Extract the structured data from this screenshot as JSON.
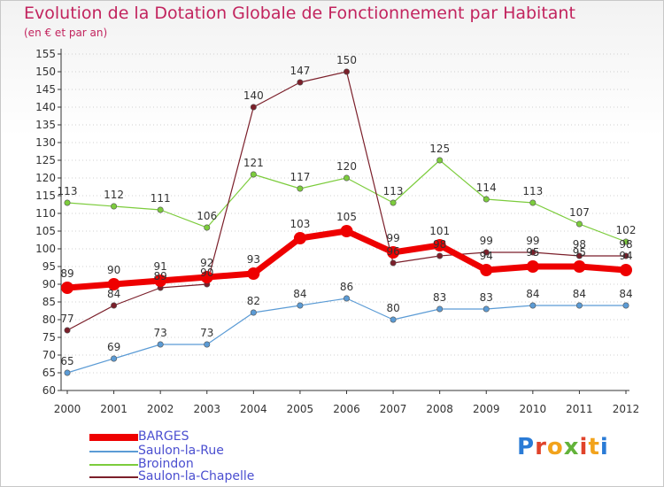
{
  "header": {
    "title": "Evolution de la Dotation Globale de Fonctionnement par Habitant",
    "subtitle": "(en € et par an)"
  },
  "logo": {
    "text": "Proxiti"
  },
  "colors": {
    "title": "#c2245e",
    "axis": "#333333",
    "legend_text": "#4b4fd0",
    "grid": "#d0d0d0"
  },
  "chart_data": {
    "type": "line",
    "title": "Evolution de la Dotation Globale de Fonctionnement par Habitant",
    "subtitle": "(en € et par an)",
    "categories": [
      "2000",
      "2001",
      "2002",
      "2003",
      "2004",
      "2005",
      "2006",
      "2007",
      "2008",
      "2009",
      "2010",
      "2011",
      "2012"
    ],
    "ylim": [
      60,
      155
    ],
    "yticks": [
      60,
      65,
      70,
      75,
      80,
      85,
      90,
      95,
      100,
      105,
      110,
      115,
      120,
      125,
      130,
      135,
      140,
      145,
      150,
      155
    ],
    "grid": "horizontal dotted",
    "legend_position": "bottom-left",
    "series": [
      {
        "name": "BARGES",
        "color": "#ee0000",
        "width": 7,
        "marker": 7,
        "values": [
          89,
          90,
          91,
          92,
          93,
          103,
          105,
          99,
          101,
          94,
          95,
          95,
          94
        ]
      },
      {
        "name": "Saulon-la-Rue",
        "color": "#5b9bd5",
        "width": 1.2,
        "marker": 3.2,
        "values": [
          65,
          69,
          73,
          73,
          82,
          84,
          86,
          80,
          83,
          83,
          84,
          84,
          84
        ]
      },
      {
        "name": "Broindon",
        "color": "#7ccc3c",
        "width": 1.2,
        "marker": 3.2,
        "values": [
          113,
          112,
          111,
          106,
          121,
          117,
          120,
          113,
          125,
          114,
          113,
          107,
          102
        ]
      },
      {
        "name": "Saulon-la-Chapelle",
        "color": "#7b1f2a",
        "width": 1.2,
        "marker": 3.2,
        "values": [
          77,
          84,
          89,
          90,
          140,
          147,
          150,
          96,
          98,
          99,
          99,
          98,
          98
        ]
      }
    ]
  }
}
